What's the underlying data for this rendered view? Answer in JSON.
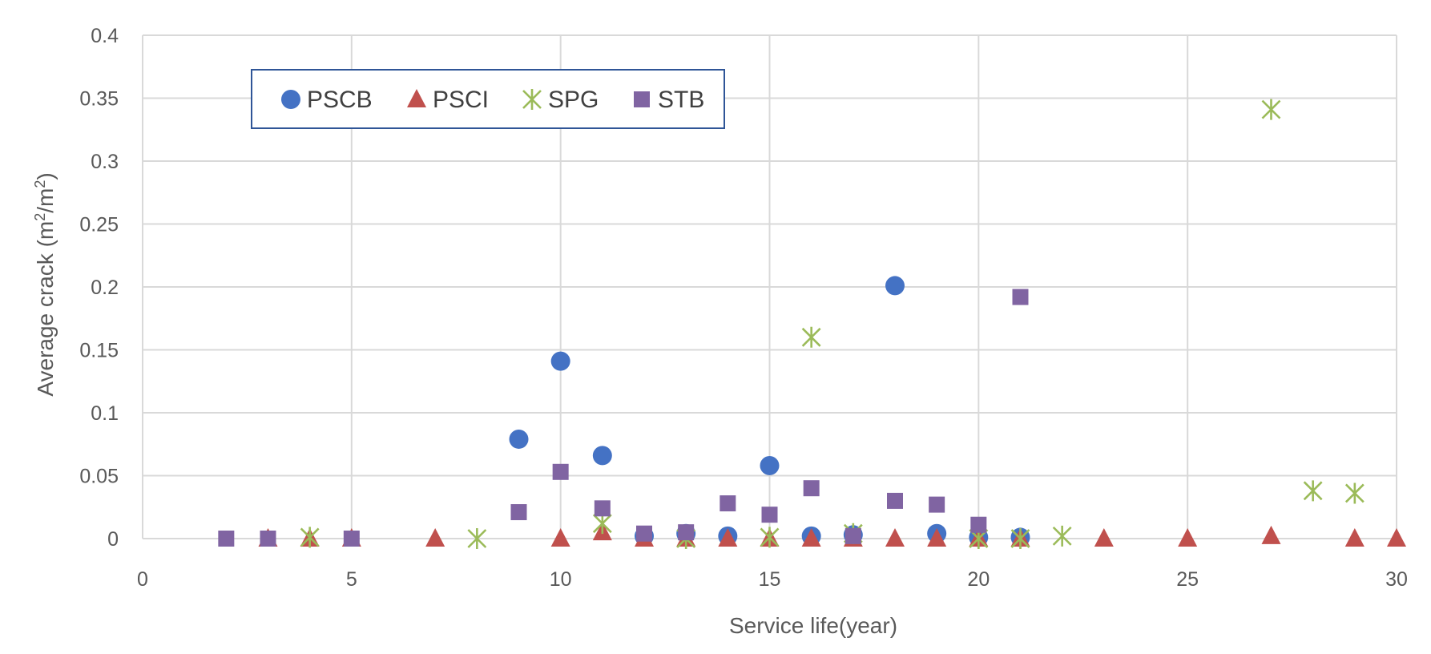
{
  "chart_data": {
    "type": "scatter",
    "title": "",
    "xlabel": "Service life(year)",
    "ylabel": {
      "main": "Average crack (m",
      "sup1": "2",
      "mid": "/m",
      "sup2": "2",
      "end": ")"
    },
    "xlim": [
      0,
      30
    ],
    "ylim": [
      0,
      0.4
    ],
    "xticks": [
      0,
      5,
      10,
      15,
      20,
      25,
      30
    ],
    "xtick_labels": [
      "0",
      "5",
      "10",
      "15",
      "20",
      "25",
      "30"
    ],
    "yticks": [
      0,
      0.05,
      0.1,
      0.15,
      0.2,
      0.25,
      0.3,
      0.35,
      0.4
    ],
    "ytick_labels": [
      "0",
      "0.05",
      "0.1",
      "0.15",
      "0.2",
      "0.25",
      "0.3",
      "0.35",
      "0.4"
    ],
    "grid": true,
    "legend_position": "top-left",
    "series": [
      {
        "name": "PSCB",
        "marker": "circle",
        "color": "#4472C4",
        "points": [
          [
            9,
            0.079
          ],
          [
            10,
            0.141
          ],
          [
            11,
            0.066
          ],
          [
            12,
            0.002
          ],
          [
            13,
            0.004
          ],
          [
            14,
            0.002
          ],
          [
            15,
            0.058
          ],
          [
            16,
            0.002
          ],
          [
            17,
            0.003
          ],
          [
            18,
            0.201
          ],
          [
            19,
            0.004
          ],
          [
            20,
            0.001
          ],
          [
            21,
            0.001
          ]
        ]
      },
      {
        "name": "PSCI",
        "marker": "triangle",
        "color": "#C0504D",
        "points": [
          [
            3,
            0.0
          ],
          [
            4,
            0.0
          ],
          [
            5,
            0.0
          ],
          [
            7,
            0.0
          ],
          [
            10,
            0.0
          ],
          [
            11,
            0.005
          ],
          [
            12,
            0.0
          ],
          [
            13,
            0.0
          ],
          [
            14,
            0.0
          ],
          [
            15,
            0.0
          ],
          [
            16,
            0.0
          ],
          [
            17,
            0.0
          ],
          [
            18,
            0.0
          ],
          [
            19,
            0.0
          ],
          [
            20,
            0.0
          ],
          [
            21,
            0.0
          ],
          [
            23,
            0.0
          ],
          [
            25,
            0.0
          ],
          [
            27,
            0.002
          ],
          [
            29,
            0.0
          ],
          [
            30,
            0.0
          ]
        ]
      },
      {
        "name": "SPG",
        "marker": "star-x",
        "color": "#9BBB59",
        "points": [
          [
            4,
            0.001
          ],
          [
            8,
            0.0
          ],
          [
            11,
            0.012
          ],
          [
            13,
            0.0
          ],
          [
            15,
            0.001
          ],
          [
            16,
            0.16
          ],
          [
            17,
            0.004
          ],
          [
            20,
            0.0
          ],
          [
            21,
            0.0
          ],
          [
            22,
            0.002
          ],
          [
            27,
            0.341
          ],
          [
            28,
            0.038
          ],
          [
            29,
            0.036
          ]
        ]
      },
      {
        "name": "STB",
        "marker": "square",
        "color": "#8064A2",
        "points": [
          [
            2,
            0.0
          ],
          [
            3,
            0.0
          ],
          [
            5,
            0.0
          ],
          [
            9,
            0.021
          ],
          [
            10,
            0.053
          ],
          [
            11,
            0.024
          ],
          [
            12,
            0.004
          ],
          [
            13,
            0.005
          ],
          [
            14,
            0.028
          ],
          [
            15,
            0.019
          ],
          [
            16,
            0.04
          ],
          [
            17,
            0.002
          ],
          [
            18,
            0.03
          ],
          [
            19,
            0.027
          ],
          [
            20,
            0.011
          ],
          [
            21,
            0.192
          ]
        ]
      }
    ]
  }
}
